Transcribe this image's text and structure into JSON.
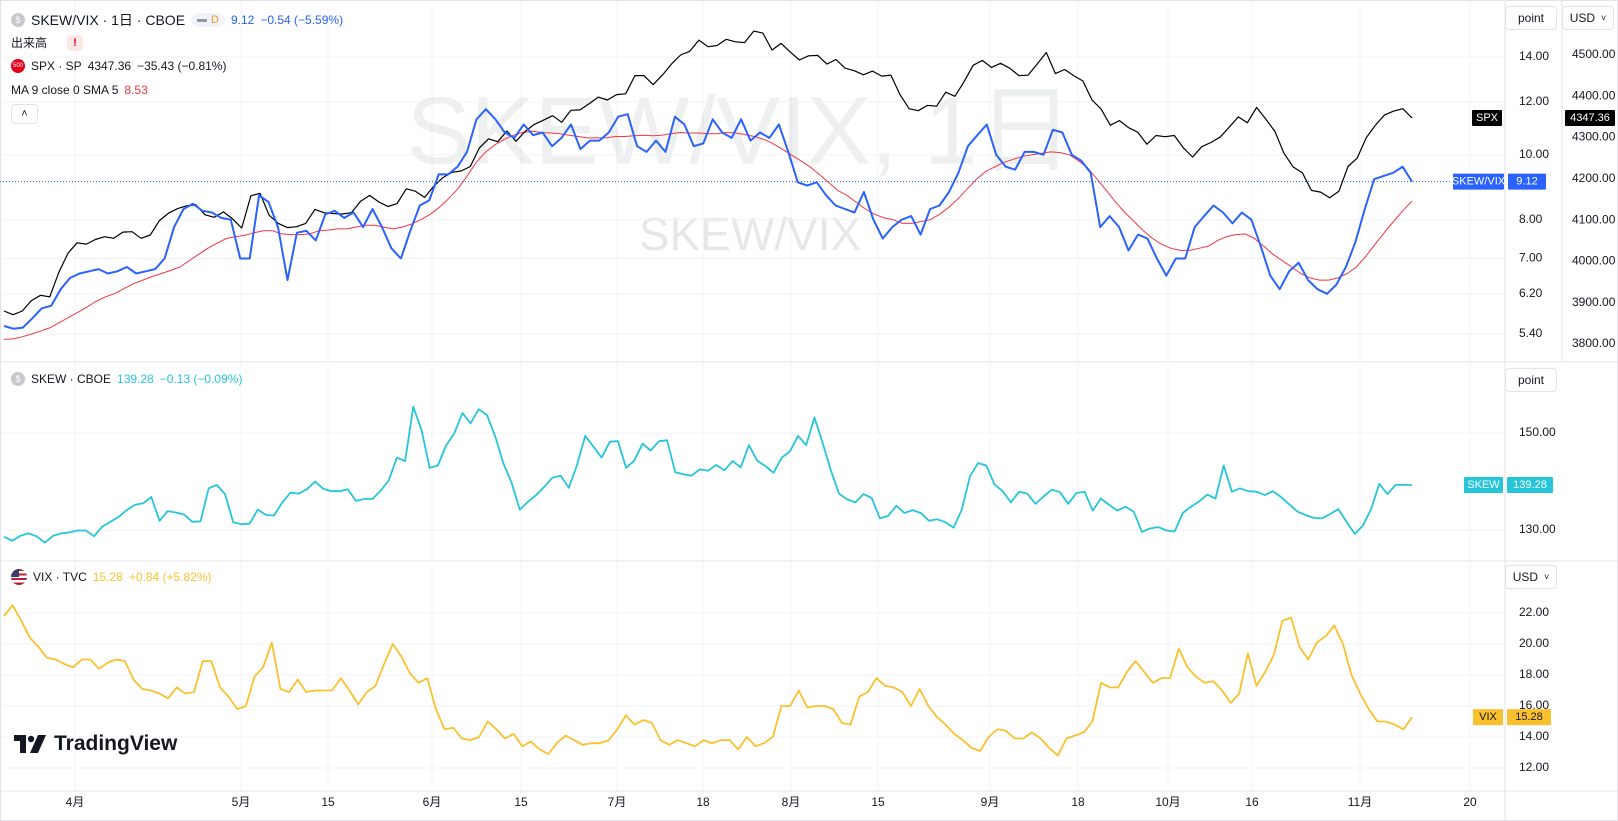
{
  "header": {
    "symbol": "SKEW/VIX · 1日 · CBOE",
    "interval_badge": "D",
    "value": "9.12",
    "change": "−0.54 (−5.59%)",
    "volume_label": "出来高",
    "volume_warning": "!",
    "spx_icon": "500",
    "spx_symbol": "SPX · SP",
    "spx_value": "4347.36",
    "spx_change": "−35.43 (−0.81%)",
    "ma_label": "MA 9 close 0 SMA 5",
    "ma_value": "8.53",
    "collapse_icon": "chevron-up-icon"
  },
  "watermark": {
    "big": "SKEW/VIX, 1日",
    "small": "SKEW/VIX"
  },
  "controls": {
    "scale_main": "point",
    "currency_main": "USD",
    "scale_skew": "point",
    "currency_vix": "USD"
  },
  "pane_skew": {
    "icon": "$",
    "symbol": "SKEW · CBOE",
    "value": "139.28",
    "change": "−0.13 (−0.09%)"
  },
  "pane_vix": {
    "symbol": "VIX · TVC",
    "value": "15.28",
    "change": "+0.84 (+5.82%)"
  },
  "logo": "TradingView",
  "colors": {
    "skewvix": "#2962ff",
    "spx": "#000000",
    "ma": "#f23645",
    "skew": "#26c6da",
    "vix": "#fbc02d",
    "axis_text": "#131722",
    "grid": "#f0f3fa"
  },
  "chart_data": [
    {
      "type": "line",
      "pane": "main",
      "x_ticks": [
        "4月",
        "5月",
        "15",
        "6月",
        "15",
        "7月",
        "18",
        "8月",
        "15",
        "9月",
        "18",
        "10月",
        "16",
        "11月",
        "20"
      ],
      "left_axis": {
        "ticks": [
          "14.00",
          "12.00",
          "10.00",
          "8.00",
          "7.00",
          "6.20",
          "5.40"
        ],
        "scale": "log"
      },
      "right_axis": {
        "ticks": [
          "4500.00",
          "4400.00",
          "4300.00",
          "4200.00",
          "4100.00",
          "4000.00",
          "3900.00",
          "3800.00"
        ]
      },
      "series": [
        {
          "name": "SKEW/VIX",
          "last": "9.12",
          "values": [
            5.55,
            5.5,
            5.52,
            5.7,
            5.9,
            5.95,
            6.3,
            6.55,
            6.65,
            6.7,
            6.75,
            6.65,
            6.7,
            6.8,
            6.65,
            6.7,
            6.75,
            7.0,
            7.8,
            8.3,
            8.45,
            8.25,
            8.2,
            8.05,
            8.0,
            7.0,
            7.0,
            8.7,
            8.5,
            7.8,
            6.5,
            7.65,
            7.7,
            7.45,
            8.15,
            8.25,
            8.05,
            8.2,
            7.8,
            8.3,
            7.8,
            7.25,
            7.0,
            7.7,
            8.4,
            8.55,
            9.35,
            9.35,
            9.6,
            10.1,
            11.3,
            11.7,
            11.3,
            10.8,
            10.6,
            11.1,
            10.7,
            10.8,
            10.3,
            10.6,
            11.1,
            10.2,
            10.5,
            10.5,
            10.8,
            11.4,
            11.5,
            10.3,
            10.1,
            10.5,
            10.1,
            11.4,
            11.1,
            10.3,
            10.4,
            11.3,
            10.8,
            10.6,
            11.3,
            10.5,
            10.8,
            10.6,
            11.1,
            10.1,
            9.1,
            9.0,
            9.1,
            8.7,
            8.4,
            8.3,
            8.2,
            8.8,
            8.0,
            7.5,
            7.8,
            8.0,
            8.1,
            7.6,
            8.3,
            8.4,
            8.8,
            9.4,
            10.3,
            10.7,
            11.1,
            10.0,
            9.6,
            9.5,
            10.1,
            10.1,
            10.0,
            10.9,
            10.8,
            10.0,
            9.8,
            9.4,
            7.8,
            8.1,
            7.8,
            7.2,
            7.6,
            7.5,
            7.0,
            6.6,
            7.0,
            7.0,
            7.8,
            8.1,
            8.4,
            8.2,
            7.9,
            8.2,
            8.0,
            7.3,
            6.6,
            6.3,
            6.7,
            6.9,
            6.5,
            6.3,
            6.2,
            6.4,
            6.8,
            7.4,
            8.3,
            9.2,
            9.3,
            9.4,
            9.6,
            9.12
          ]
        },
        {
          "name": "SPX",
          "last": "4347.36",
          "values": [
            3880,
            3871,
            3880,
            3905,
            3918,
            3914,
            3974,
            4020,
            4045,
            4042,
            4053,
            4060,
            4056,
            4071,
            4072,
            4056,
            4064,
            4099,
            4117,
            4128,
            4135,
            4137,
            4113,
            4107,
            4120,
            4103,
            4081,
            4159,
            4165,
            4112,
            4092,
            4082,
            4084,
            4092,
            4126,
            4118,
            4116,
            4115,
            4118,
            4146,
            4160,
            4144,
            4133,
            4140,
            4176,
            4170,
            4155,
            4182,
            4203,
            4216,
            4219,
            4230,
            4275,
            4297,
            4290,
            4316,
            4291,
            4315,
            4332,
            4342,
            4353,
            4337,
            4366,
            4367,
            4382,
            4398,
            4391,
            4404,
            4406,
            4450,
            4450,
            4428,
            4451,
            4478,
            4500,
            4509,
            4536,
            4520,
            4523,
            4538,
            4532,
            4530,
            4558,
            4553,
            4512,
            4528,
            4507,
            4488,
            4498,
            4499,
            4478,
            4489,
            4468,
            4462,
            4452,
            4461,
            4449,
            4451,
            4404,
            4370,
            4365,
            4378,
            4376,
            4410,
            4400,
            4435,
            4475,
            4487,
            4470,
            4480,
            4468,
            4450,
            4451,
            4478,
            4506,
            4455,
            4465,
            4450,
            4437,
            4391,
            4369,
            4330,
            4341,
            4324,
            4313,
            4284,
            4305,
            4302,
            4305,
            4275,
            4253,
            4278,
            4288,
            4301,
            4325,
            4350,
            4336,
            4373,
            4345,
            4315,
            4262,
            4229,
            4215,
            4172,
            4168,
            4154,
            4170,
            4230,
            4250,
            4300,
            4330,
            4355,
            4364,
            4370,
            4347.36
          ]
        },
        {
          "name": "MA 9 close 0 SMA 5",
          "last": "8.53",
          "values": [
            5.3,
            5.31,
            5.35,
            5.4,
            5.46,
            5.52,
            5.62,
            5.72,
            5.82,
            5.93,
            6.05,
            6.14,
            6.21,
            6.32,
            6.42,
            6.5,
            6.58,
            6.65,
            6.72,
            6.8,
            6.95,
            7.1,
            7.25,
            7.38,
            7.5,
            7.55,
            7.58,
            7.65,
            7.7,
            7.7,
            7.62,
            7.6,
            7.6,
            7.62,
            7.7,
            7.72,
            7.75,
            7.75,
            7.8,
            7.85,
            7.85,
            7.8,
            7.75,
            7.8,
            7.88,
            8.0,
            8.15,
            8.35,
            8.6,
            8.9,
            9.3,
            9.75,
            10.1,
            10.35,
            10.55,
            10.7,
            10.8,
            10.85,
            10.8,
            10.78,
            10.75,
            10.7,
            10.65,
            10.6,
            10.6,
            10.6,
            10.65,
            10.65,
            10.68,
            10.7,
            10.68,
            10.7,
            10.75,
            10.8,
            10.78,
            10.78,
            10.75,
            10.75,
            10.8,
            10.78,
            10.72,
            10.65,
            10.55,
            10.4,
            10.2,
            10.0,
            9.8,
            9.6,
            9.35,
            9.1,
            8.85,
            8.7,
            8.5,
            8.3,
            8.15,
            8.05,
            8.0,
            7.9,
            7.9,
            7.95,
            8.0,
            8.15,
            8.35,
            8.6,
            8.9,
            9.2,
            9.45,
            9.6,
            9.75,
            9.85,
            9.95,
            10.0,
            10.05,
            10.1,
            10.08,
            10.0,
            9.8,
            9.55,
            9.2,
            8.85,
            8.5,
            8.2,
            7.95,
            7.7,
            7.5,
            7.35,
            7.25,
            7.2,
            7.2,
            7.25,
            7.3,
            7.45,
            7.55,
            7.6,
            7.62,
            7.5,
            7.3,
            7.1,
            6.95,
            6.8,
            6.65,
            6.55,
            6.5,
            6.5,
            6.55,
            6.65,
            6.8,
            7.05,
            7.35,
            7.65,
            7.95,
            8.25,
            8.53
          ]
        }
      ]
    },
    {
      "type": "line",
      "pane": "skew",
      "right_axis": {
        "ticks": [
          "150.00",
          "130.00"
        ]
      },
      "series": [
        {
          "name": "SKEW",
          "last": "139.28",
          "values": [
            128.6,
            127.8,
            128.8,
            129.3,
            128.7,
            127.4,
            128.8,
            129.3,
            129.5,
            129.9,
            129.9,
            128.7,
            130.7,
            131.7,
            132.7,
            134.1,
            135.2,
            135.5,
            136.8,
            131.9,
            133.9,
            133.6,
            133.2,
            131.7,
            131.8,
            138.6,
            139.3,
            137.4,
            131.6,
            131.2,
            131.3,
            134.2,
            133.1,
            133.0,
            135.7,
            137.7,
            137.5,
            138.4,
            140.0,
            138.5,
            138.0,
            138.0,
            138.4,
            136.0,
            136.4,
            136.4,
            138.1,
            140.2,
            144.9,
            144.2,
            155.4,
            150.6,
            142.8,
            143.3,
            147.4,
            149.9,
            154.1,
            152.0,
            154.9,
            153.7,
            149.3,
            143.8,
            139.8,
            134.2,
            135.8,
            137.2,
            138.9,
            140.8,
            141.2,
            138.7,
            143.4,
            149.4,
            147.2,
            144.9,
            148.2,
            148.3,
            142.8,
            144.3,
            147.8,
            146.4,
            148.3,
            148.5,
            141.9,
            141.5,
            141.2,
            142.5,
            142.2,
            143.4,
            142.3,
            144.2,
            142.9,
            147.5,
            144.3,
            143.2,
            141.8,
            144.9,
            146.2,
            149.4,
            147.5,
            153.2,
            148.0,
            142.3,
            137.5,
            136.3,
            135.7,
            137.4,
            136.6,
            132.4,
            132.9,
            135.0,
            133.5,
            134.1,
            133.5,
            131.9,
            132.2,
            131.6,
            130.5,
            134.2,
            141.1,
            143.8,
            143.3,
            139.4,
            138.0,
            135.7,
            137.9,
            137.5,
            135.4,
            136.9,
            138.3,
            137.8,
            135.4,
            137.6,
            137.9,
            134.0,
            136.5,
            135.2,
            134.0,
            134.8,
            133.8,
            129.6,
            130.3,
            130.6,
            129.9,
            129.7,
            133.5,
            134.8,
            135.9,
            137.3,
            136.5,
            143.3,
            137.9,
            138.6,
            138.0,
            137.9,
            137.2,
            138.0,
            136.8,
            135.3,
            133.8,
            133.1,
            132.5,
            132.4,
            133.3,
            134.3,
            131.7,
            129.2,
            130.9,
            134.3,
            139.5,
            137.4,
            139.3,
            139.3,
            139.28
          ]
        }
      ]
    },
    {
      "type": "line",
      "pane": "vix",
      "right_axis": {
        "ticks": [
          "22.00",
          "20.00",
          "18.00",
          "16.00",
          "14.00",
          "12.00"
        ]
      },
      "series": [
        {
          "name": "VIX",
          "last": "15.28",
          "values": [
            21.8,
            22.5,
            21.5,
            20.4,
            19.8,
            19.1,
            19.0,
            18.7,
            18.5,
            19.0,
            19.0,
            18.4,
            18.8,
            19.0,
            18.9,
            17.7,
            17.1,
            17.0,
            16.8,
            16.5,
            17.2,
            16.8,
            16.9,
            18.9,
            18.9,
            17.2,
            16.6,
            15.8,
            16.0,
            17.9,
            18.5,
            20.1,
            17.1,
            16.9,
            17.7,
            16.9,
            17.0,
            17.0,
            17.0,
            17.8,
            17.0,
            16.1,
            16.9,
            17.3,
            18.7,
            20.0,
            19.2,
            18.1,
            17.5,
            17.8,
            15.8,
            14.5,
            14.6,
            13.9,
            13.8,
            14.0,
            15.0,
            14.5,
            13.9,
            14.2,
            13.4,
            13.7,
            13.2,
            12.9,
            13.6,
            14.1,
            13.8,
            13.5,
            13.6,
            13.6,
            13.8,
            14.5,
            15.4,
            14.8,
            15.1,
            14.9,
            13.8,
            13.5,
            13.8,
            13.6,
            13.4,
            13.8,
            13.6,
            13.8,
            13.8,
            13.2,
            14.0,
            13.4,
            13.6,
            14.0,
            16.0,
            16.0,
            17.0,
            15.9,
            16.0,
            16.0,
            15.8,
            14.9,
            14.8,
            16.6,
            16.9,
            17.8,
            17.3,
            17.2,
            16.9,
            16.0,
            17.1,
            16.0,
            15.3,
            14.8,
            14.2,
            13.8,
            13.3,
            13.1,
            14.0,
            14.5,
            14.4,
            13.9,
            13.9,
            14.3,
            13.9,
            13.3,
            12.8,
            13.9,
            14.1,
            14.3,
            15.0,
            17.5,
            17.2,
            17.2,
            18.2,
            18.9,
            18.2,
            17.5,
            17.8,
            17.8,
            19.7,
            18.5,
            17.9,
            17.5,
            17.6,
            17.0,
            16.2,
            16.8,
            19.4,
            17.3,
            18.2,
            19.3,
            21.5,
            21.7,
            19.8,
            19.0,
            20.1,
            20.5,
            21.2,
            20.0,
            18.0,
            16.8,
            15.8,
            15.0,
            15.0,
            14.8,
            14.5,
            15.28
          ]
        }
      ]
    }
  ]
}
